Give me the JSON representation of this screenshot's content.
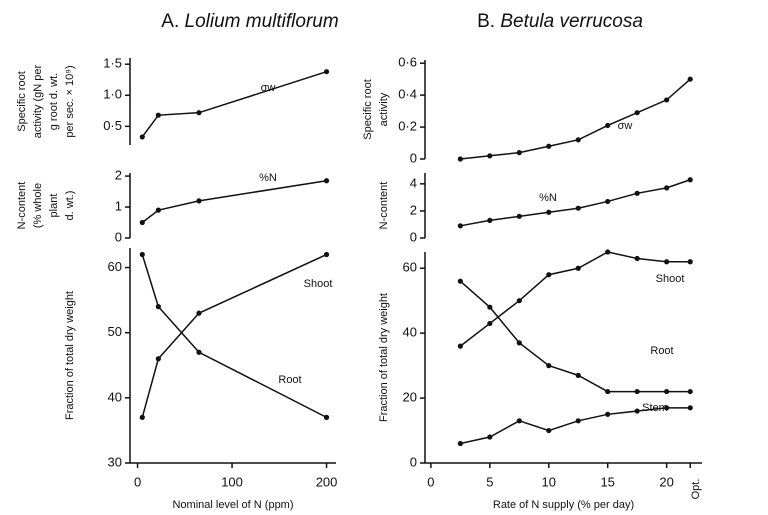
{
  "headings": [
    {
      "letter": "A.",
      "species": "Lolium multiflorum"
    },
    {
      "letter": "B.",
      "species": "Betula verrucosa"
    }
  ],
  "chart_data": [
    {
      "type": "line",
      "ylabel": [
        "Specific root",
        "activity (gN per",
        "g root d. wt.",
        "per sec. × 10⁹)"
      ],
      "x": [
        5,
        22,
        65,
        200
      ],
      "xlim": [
        -8,
        210
      ],
      "ylim": [
        0.2,
        1.6
      ],
      "yticks": [
        {
          "value": 0.5,
          "label": "0·5"
        },
        {
          "value": 1.0,
          "label": "1·0"
        },
        {
          "value": 1.5,
          "label": "1·5"
        }
      ],
      "series": [
        {
          "name": "σw",
          "color": "#111",
          "values": [
            0.33,
            0.68,
            0.72,
            1.38
          ]
        }
      ]
    },
    {
      "type": "line",
      "ylabel": [
        "N-content",
        "(% whole",
        "plant",
        "d. wt.)"
      ],
      "x": [
        5,
        22,
        65,
        200
      ],
      "xlim": [
        -8,
        210
      ],
      "ylim": [
        0,
        2.1
      ],
      "yticks": [
        0,
        1,
        2
      ],
      "series": [
        {
          "name": "%N",
          "color": "#111",
          "values": [
            0.5,
            0.9,
            1.2,
            1.85
          ]
        }
      ]
    },
    {
      "type": "line",
      "ylabel": [
        "Fraction of total dry weight"
      ],
      "x": [
        5,
        22,
        65,
        200
      ],
      "xlim": [
        -8,
        210
      ],
      "ylim": [
        30,
        63
      ],
      "yticks": [
        30,
        40,
        50,
        60
      ],
      "xticks": [
        0,
        100,
        200
      ],
      "xlabel": "Nominal level of N (ppm)",
      "series": [
        {
          "name": "Shoot",
          "color": "#111",
          "values": [
            37,
            46,
            53,
            62
          ]
        },
        {
          "name": "Root",
          "color": "#111",
          "values": [
            62,
            54,
            47,
            37
          ]
        }
      ]
    },
    {
      "type": "line",
      "ylabel": [
        "Specific root",
        "activity"
      ],
      "x": [
        2.5,
        5,
        7.5,
        10,
        12.5,
        15,
        17.5,
        20,
        22
      ],
      "xlim": [
        -0.5,
        23
      ],
      "ylim": [
        0,
        0.62
      ],
      "yticks": [
        0,
        {
          "value": 0.2,
          "label": "0·2"
        },
        {
          "value": 0.4,
          "label": "0·4"
        },
        {
          "value": 0.6,
          "label": "0·6"
        }
      ],
      "series": [
        {
          "name": "σw",
          "color": "#111",
          "values": [
            0,
            0.02,
            0.04,
            0.08,
            0.12,
            0.21,
            0.29,
            0.37,
            0.5
          ]
        }
      ]
    },
    {
      "type": "line",
      "ylabel": [
        "N-content"
      ],
      "x": [
        2.5,
        5,
        7.5,
        10,
        12.5,
        15,
        17.5,
        20,
        22
      ],
      "xlim": [
        -0.5,
        23
      ],
      "ylim": [
        0,
        4.8
      ],
      "yticks": [
        0,
        2,
        4
      ],
      "series": [
        {
          "name": "%N",
          "color": "#111",
          "values": [
            0.9,
            1.3,
            1.6,
            1.9,
            2.2,
            2.7,
            3.3,
            3.7,
            4.3
          ]
        }
      ]
    },
    {
      "type": "line",
      "ylabel": [
        "Fraction of total dry weight"
      ],
      "x": [
        2.5,
        5,
        7.5,
        10,
        12.5,
        15,
        17.5,
        20,
        22
      ],
      "xlim": [
        -0.5,
        23
      ],
      "ylim": [
        0,
        65
      ],
      "yticks": [
        0,
        20,
        40,
        60
      ],
      "xticks": [
        0,
        5,
        10,
        15,
        20,
        {
          "value": 22,
          "label": "Opt."
        }
      ],
      "xlabel": "Rate of N supply (% per day)",
      "series": [
        {
          "name": "Shoot",
          "color": "#111",
          "values": [
            36,
            43,
            50,
            58,
            60,
            65,
            63,
            62,
            62
          ]
        },
        {
          "name": "Root",
          "color": "#111",
          "values": [
            56,
            48,
            37,
            30,
            27,
            22,
            22,
            22,
            22
          ]
        },
        {
          "name": "Stem",
          "color": "#111",
          "values": [
            6,
            8,
            13,
            10,
            13,
            15,
            16,
            17,
            17
          ]
        }
      ]
    }
  ]
}
